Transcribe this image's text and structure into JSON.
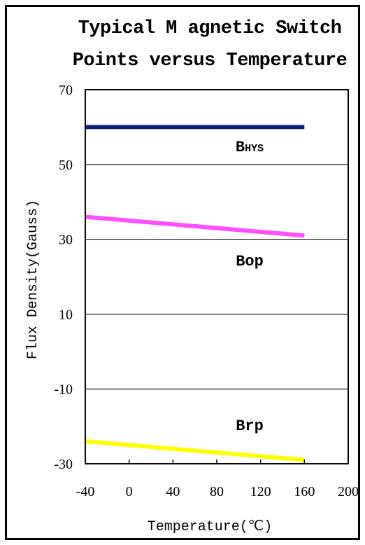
{
  "chart_data": {
    "type": "line",
    "title_line1": "Typical M agnetic Switch",
    "title_line2": "Points versus Temperature",
    "xlabel": "Temperature(℃)",
    "ylabel": "Flux Density(Gauss)",
    "xlim": [
      -40,
      200
    ],
    "ylim": [
      -30,
      70
    ],
    "xticks": [
      "-40",
      "0",
      "40",
      "80",
      "120",
      "160",
      "200"
    ],
    "yticks": [
      "70",
      "50",
      "30",
      "10",
      "-10",
      "-30"
    ],
    "ytick_values": [
      70,
      50,
      30,
      10,
      -10,
      -30
    ],
    "grid_y": [
      50,
      30,
      10,
      -10
    ],
    "grid": true,
    "series": [
      {
        "name": "BHYS",
        "color": "#0d1f7a",
        "x": [
          -40,
          160
        ],
        "values": [
          60,
          60
        ]
      },
      {
        "name": "Bop",
        "color": "#ff4dff",
        "x": [
          -40,
          160
        ],
        "values": [
          36,
          31
        ]
      },
      {
        "name": "Brp",
        "color": "#ffff00",
        "x": [
          -40,
          160
        ],
        "values": [
          -24,
          -29
        ]
      }
    ],
    "annotations": [
      {
        "label_main": "B",
        "label_sub": "HYS",
        "x": 110,
        "y": 53.5
      },
      {
        "label_main": "Bop",
        "label_sub": "",
        "x": 110,
        "y": 23
      },
      {
        "label_main": "Brp",
        "label_sub": "",
        "x": 110,
        "y": -21
      }
    ]
  }
}
